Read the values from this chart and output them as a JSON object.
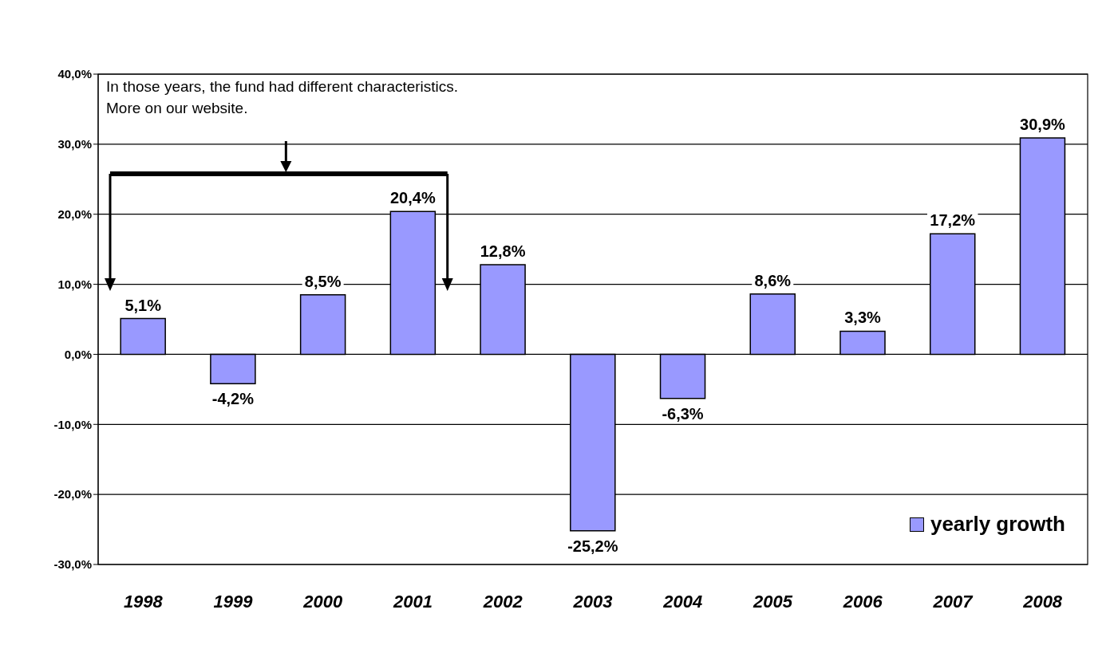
{
  "chart_data": {
    "type": "bar",
    "categories": [
      "1998",
      "1999",
      "2000",
      "2001",
      "2002",
      "2003",
      "2004",
      "2005",
      "2006",
      "2007",
      "2008"
    ],
    "series": [
      {
        "name": "yearly growth",
        "color": "#9999ff",
        "values": [
          5.1,
          -4.2,
          8.5,
          20.4,
          12.8,
          -25.2,
          -6.3,
          8.6,
          3.3,
          17.2,
          30.9
        ],
        "value_labels": [
          "5,1%",
          "-4,2%",
          "8,5%",
          "20,4%",
          "12,8%",
          "-25,2%",
          "-6,3%",
          "8,6%",
          "3,3%",
          "17,2%",
          "30,9%"
        ]
      }
    ],
    "ylim": [
      -30,
      40
    ],
    "yticks": [
      {
        "value": -30,
        "label": "-30,0%"
      },
      {
        "value": -20,
        "label": "-20,0%"
      },
      {
        "value": -10,
        "label": "-10,0%"
      },
      {
        "value": 0,
        "label": "0,0%"
      },
      {
        "value": 10,
        "label": "10,0%"
      },
      {
        "value": 20,
        "label": "20,0%"
      },
      {
        "value": 30,
        "label": "30,0%"
      },
      {
        "value": 40,
        "label": "40,0%"
      }
    ],
    "grid": "y",
    "legend": "bottom right",
    "annotations": [
      "In those years, the fund had different characteristics. More on our website."
    ]
  }
}
